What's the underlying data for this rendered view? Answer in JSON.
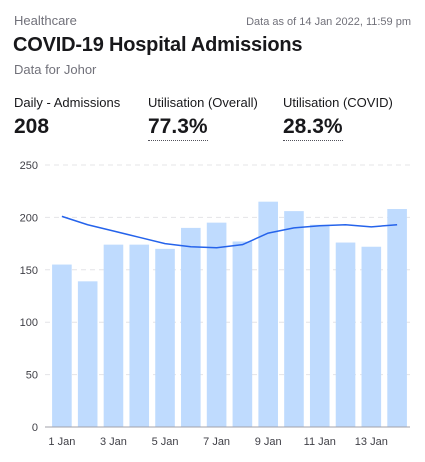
{
  "header": {
    "category": "Healthcare",
    "timestamp": "Data as of 14 Jan 2022, 11:59 pm",
    "title": "COVID-19 Hospital Admissions",
    "subtitle": "Data for Johor"
  },
  "stats": [
    {
      "label": "Daily - Admissions",
      "value": "208"
    },
    {
      "label": "Utilisation (Overall)",
      "value": "77.3%"
    },
    {
      "label": "Utilisation (COVID)",
      "value": "28.3%"
    }
  ],
  "colors": {
    "bar": "#bfdbfe",
    "line": "#2563eb",
    "grid": "#e4e4e7"
  },
  "chart_data": {
    "type": "bar",
    "x": [
      "1 Jan",
      "2 Jan",
      "3 Jan",
      "4 Jan",
      "5 Jan",
      "6 Jan",
      "7 Jan",
      "8 Jan",
      "9 Jan",
      "10 Jan",
      "11 Jan",
      "12 Jan",
      "13 Jan",
      "14 Jan"
    ],
    "x_tick_labels": [
      "1 Jan",
      "3 Jan",
      "5 Jan",
      "7 Jan",
      "9 Jan",
      "11 Jan",
      "13 Jan"
    ],
    "series": [
      {
        "type": "bar",
        "values": [
          155,
          139,
          174,
          174,
          170,
          190,
          195,
          177,
          215,
          206,
          193,
          176,
          172,
          208
        ]
      },
      {
        "type": "line",
        "values": [
          201,
          193,
          187,
          181,
          175,
          172,
          171,
          174,
          185,
          190,
          192,
          193,
          191,
          193
        ]
      }
    ],
    "ylim": [
      0,
      250
    ],
    "y_ticks": [
      0,
      50,
      100,
      150,
      200,
      250
    ],
    "grid": true,
    "xlabel": "",
    "ylabel": ""
  }
}
